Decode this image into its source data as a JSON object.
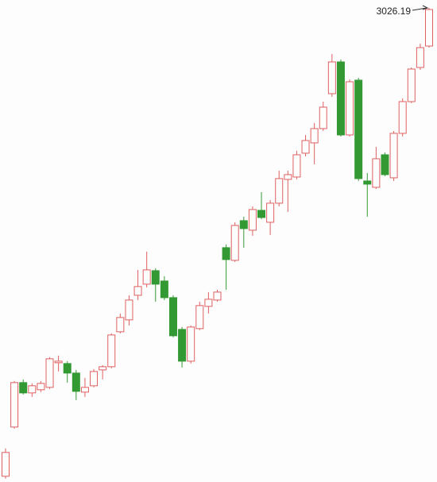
{
  "chart_data": {
    "type": "candlestick",
    "up_color": "#e06060",
    "down_color": "#339933",
    "ylim": [
      1951,
      3044
    ],
    "open": [
      1964,
      2075.6,
      2176.4,
      2153,
      2160.2,
      2165.6,
      2221.4,
      2219.6,
      2198,
      2154.8,
      2169.2,
      2205.2,
      2212.4,
      2291.6,
      2318.6,
      2374.4,
      2399.6,
      2430.2,
      2406.8,
      2369,
      2297,
      2225,
      2298.8,
      2349.2,
      2363.6,
      2482.4,
      2453.6,
      2543.6,
      2522,
      2567,
      2540,
      2583.2,
      2637.2,
      2642.6,
      2696.6,
      2720,
      2752.4,
      2831.6,
      2903.6,
      2738,
      2862.2,
      2633.6,
      2619.2,
      2693,
      2640.8,
      2741.6,
      2813.6,
      2891,
      2939.6
    ],
    "high": [
      2027,
      2180,
      2183.6,
      2174.6,
      2180,
      2234,
      2237.6,
      2225,
      2205.2,
      2187.2,
      2207,
      2216,
      2288,
      2333,
      2374.4,
      2432,
      2473.4,
      2435.6,
      2417.6,
      2374.4,
      2302.4,
      2306,
      2360,
      2381.6,
      2387,
      2489.6,
      2540,
      2552.6,
      2576,
      2608.4,
      2590.4,
      2657,
      2657,
      2702,
      2738,
      2765,
      2813.6,
      2921.6,
      2909,
      2864,
      2867.6,
      2651.6,
      2711,
      2698.4,
      2747,
      2820.8,
      2891,
      2945,
      3026.19
    ],
    "low": [
      1958.6,
      2072,
      2149.4,
      2144,
      2154.8,
      2162,
      2201.6,
      2176.4,
      2136.8,
      2144,
      2165.6,
      2183.6,
      2208.8,
      2288,
      2306,
      2363.6,
      2392.4,
      2360,
      2363.6,
      2279,
      2210.6,
      2219.6,
      2295.2,
      2333,
      2360,
      2387,
      2450,
      2482.4,
      2509.4,
      2547.2,
      2511.2,
      2576,
      2563.4,
      2637.2,
      2689.4,
      2671.4,
      2747,
      2824.4,
      2734.4,
      2734.4,
      2633.6,
      2552.6,
      2615.6,
      2644.4,
      2633.6,
      2734.4,
      2810,
      2885.6,
      2936
    ],
    "close": [
      2018,
      2176.4,
      2153,
      2169.2,
      2174.6,
      2230.4,
      2225,
      2198,
      2156.6,
      2165.6,
      2201.6,
      2212.4,
      2284.4,
      2324,
      2363.6,
      2394.2,
      2432,
      2399.6,
      2369,
      2282.6,
      2225,
      2302.4,
      2351,
      2365.4,
      2381.6,
      2455.4,
      2532.8,
      2525.6,
      2568.8,
      2550.8,
      2583.2,
      2639,
      2648,
      2693,
      2725.4,
      2752.4,
      2801,
      2903.6,
      2738,
      2858.6,
      2639,
      2626.4,
      2684,
      2648,
      2741.6,
      2813.6,
      2887.4,
      2936,
      3022.4
    ]
  }
}
